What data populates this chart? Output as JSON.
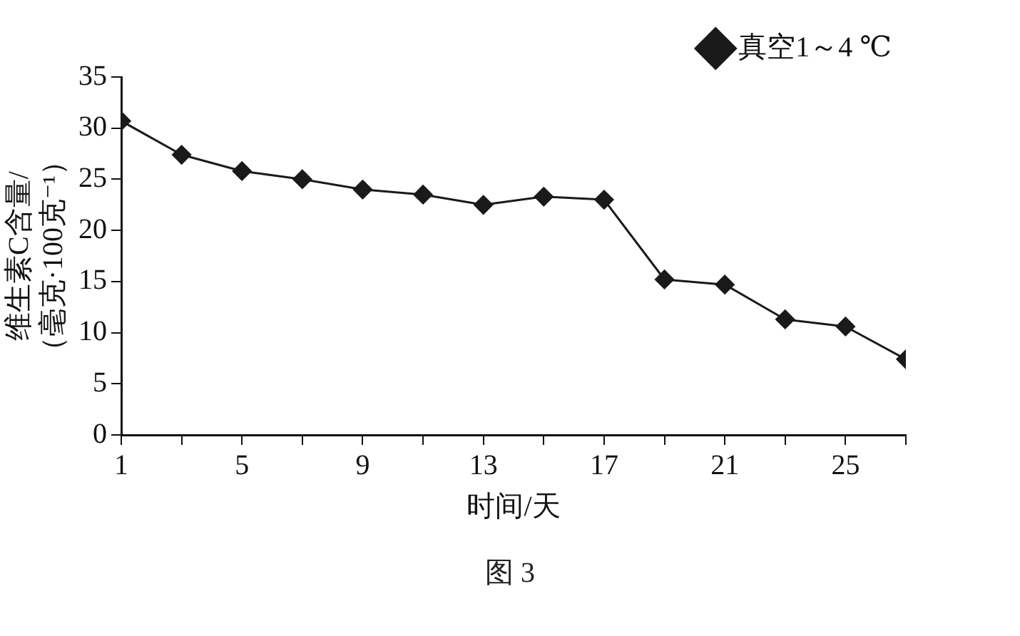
{
  "chart_data": {
    "type": "line",
    "xlabel": "时间/天",
    "ylabel": "维生素C含量/\n（毫克·100克⁻¹）",
    "x": [
      1,
      3,
      5,
      7,
      9,
      11,
      13,
      15,
      17,
      19,
      21,
      23,
      25,
      27
    ],
    "series": [
      {
        "name": "真空1～4 ℃",
        "color": "#1a1a1a",
        "values": [
          30.7,
          27.4,
          25.8,
          25.0,
          24.0,
          23.5,
          22.5,
          23.3,
          23.0,
          15.2,
          14.7,
          11.3,
          10.6,
          7.4
        ]
      }
    ],
    "xlim": [
      1,
      27
    ],
    "xticks": [
      1,
      {
        "value": 3,
        "label": null
      },
      5,
      {
        "value": 7,
        "label": null
      },
      9,
      {
        "value": 11,
        "label": null
      },
      13,
      {
        "value": 15,
        "label": null
      },
      17,
      {
        "value": 19,
        "label": null
      },
      21,
      {
        "value": 23,
        "label": null
      },
      25,
      {
        "value": 27,
        "label": null
      }
    ],
    "ylim": [
      0,
      35
    ],
    "yticks": [
      0,
      5,
      10,
      15,
      20,
      25,
      30,
      35
    ],
    "grid": false,
    "legend": "top right",
    "marker": "diamond",
    "line_style": "solid",
    "annotations": [
      "图 3"
    ]
  }
}
